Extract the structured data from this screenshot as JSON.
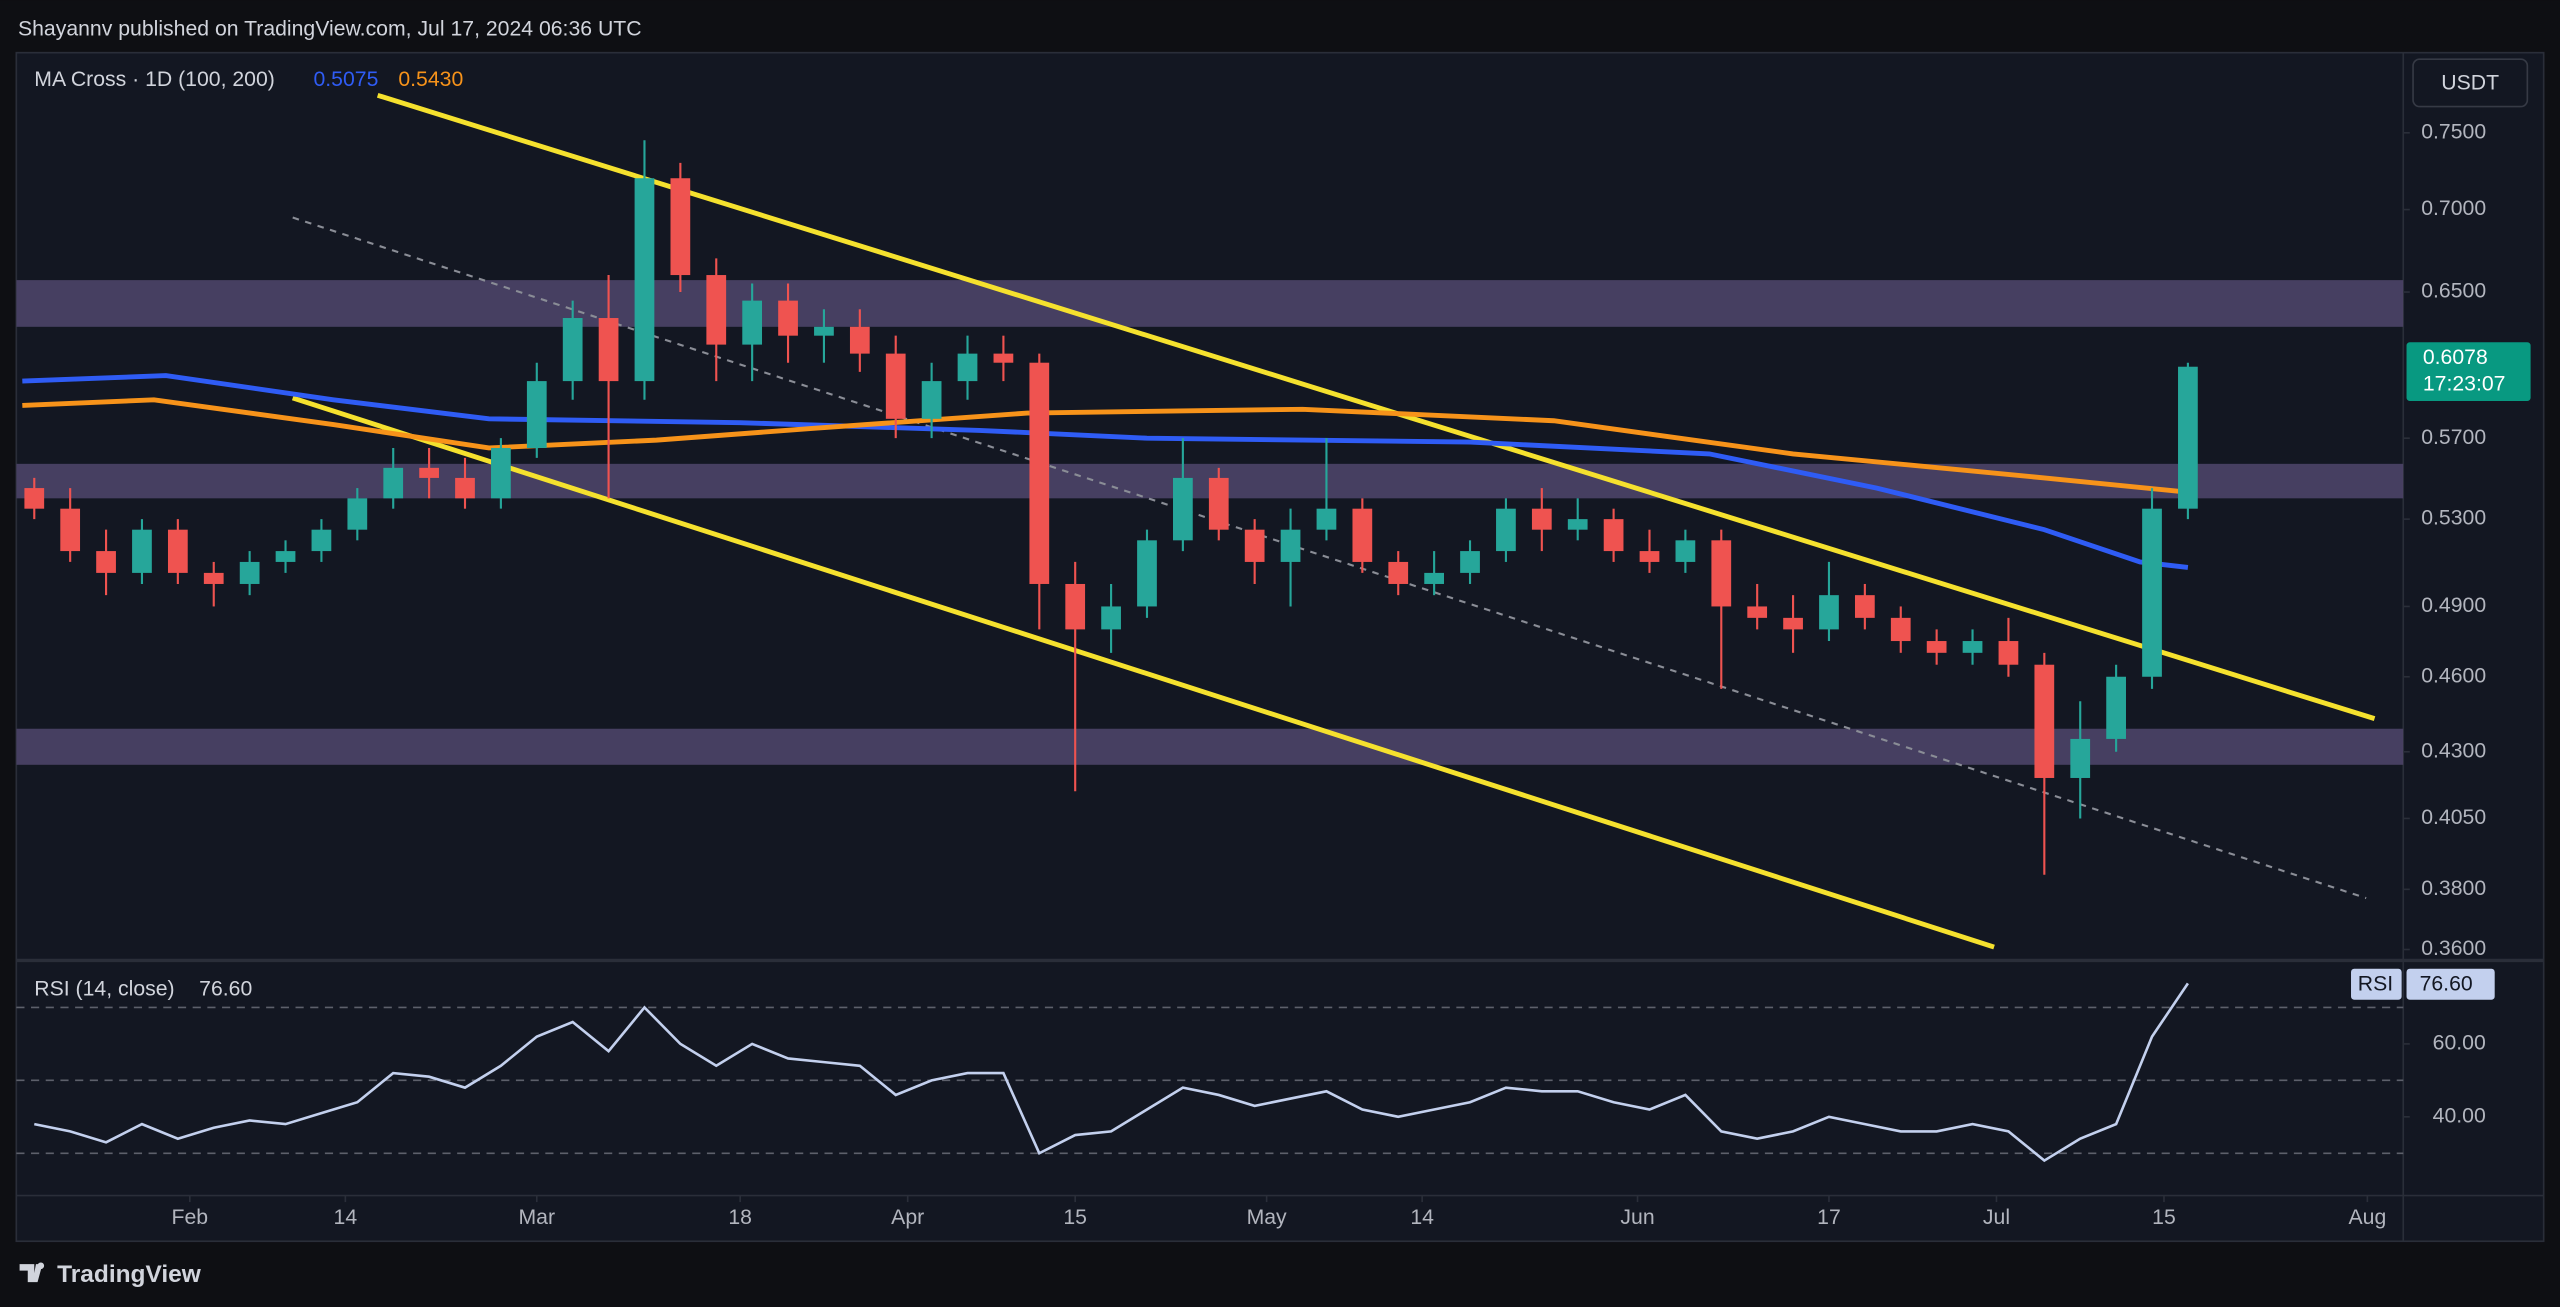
{
  "header": {
    "text": "Shayannv published on TradingView.com, Jul 17, 2024 06:36 UTC"
  },
  "footer": {
    "brand": "TradingView"
  },
  "chart_data": [
    {
      "type": "candlestick",
      "currency": "USDT",
      "countdown": "17:23:07",
      "log_scale": true,
      "up_color": "#26a69a",
      "down_color": "#ef5350",
      "x": [
        1,
        4,
        7,
        10,
        13,
        16,
        19,
        22,
        25,
        28,
        31,
        34,
        37,
        40,
        43,
        46,
        49,
        52,
        55,
        58,
        61,
        64,
        67,
        70,
        73,
        76,
        79,
        82,
        85,
        88,
        91,
        94,
        97,
        100,
        103,
        106,
        109,
        112,
        115,
        118,
        121,
        124,
        127,
        130,
        133,
        136,
        139,
        142,
        145,
        148,
        151,
        154,
        157,
        160,
        163,
        166,
        169,
        172,
        175,
        178,
        181
      ],
      "open": [
        0.545,
        0.535,
        0.515,
        0.505,
        0.525,
        0.505,
        0.5,
        0.51,
        0.515,
        0.525,
        0.54,
        0.555,
        0.55,
        0.54,
        0.565,
        0.6,
        0.635,
        0.6,
        0.72,
        0.66,
        0.62,
        0.645,
        0.625,
        0.63,
        0.615,
        0.58,
        0.6,
        0.615,
        0.61,
        0.5,
        0.48,
        0.49,
        0.52,
        0.55,
        0.525,
        0.51,
        0.525,
        0.535,
        0.51,
        0.5,
        0.505,
        0.515,
        0.535,
        0.525,
        0.53,
        0.515,
        0.51,
        0.52,
        0.49,
        0.485,
        0.48,
        0.495,
        0.485,
        0.475,
        0.47,
        0.475,
        0.465,
        0.42,
        0.435,
        0.46,
        0.535
      ],
      "high": [
        0.55,
        0.545,
        0.525,
        0.53,
        0.53,
        0.51,
        0.515,
        0.52,
        0.53,
        0.545,
        0.565,
        0.565,
        0.56,
        0.57,
        0.61,
        0.645,
        0.66,
        0.745,
        0.73,
        0.67,
        0.655,
        0.655,
        0.64,
        0.64,
        0.625,
        0.61,
        0.625,
        0.625,
        0.615,
        0.51,
        0.5,
        0.525,
        0.57,
        0.555,
        0.53,
        0.535,
        0.57,
        0.54,
        0.515,
        0.515,
        0.52,
        0.54,
        0.545,
        0.54,
        0.535,
        0.525,
        0.525,
        0.525,
        0.5,
        0.495,
        0.51,
        0.5,
        0.49,
        0.48,
        0.48,
        0.485,
        0.47,
        0.45,
        0.465,
        0.545,
        0.61
      ],
      "low": [
        0.53,
        0.51,
        0.495,
        0.5,
        0.5,
        0.49,
        0.495,
        0.505,
        0.51,
        0.52,
        0.535,
        0.54,
        0.535,
        0.535,
        0.56,
        0.59,
        0.54,
        0.59,
        0.65,
        0.6,
        0.6,
        0.61,
        0.61,
        0.605,
        0.57,
        0.57,
        0.59,
        0.6,
        0.48,
        0.415,
        0.47,
        0.485,
        0.515,
        0.52,
        0.5,
        0.49,
        0.52,
        0.505,
        0.495,
        0.495,
        0.5,
        0.51,
        0.515,
        0.52,
        0.51,
        0.505,
        0.505,
        0.455,
        0.48,
        0.47,
        0.475,
        0.48,
        0.47,
        0.465,
        0.465,
        0.46,
        0.385,
        0.405,
        0.43,
        0.455,
        0.53
      ],
      "close": [
        0.535,
        0.515,
        0.505,
        0.525,
        0.505,
        0.5,
        0.51,
        0.515,
        0.525,
        0.54,
        0.555,
        0.55,
        0.54,
        0.565,
        0.6,
        0.635,
        0.6,
        0.72,
        0.66,
        0.62,
        0.645,
        0.625,
        0.63,
        0.615,
        0.58,
        0.6,
        0.615,
        0.61,
        0.5,
        0.48,
        0.49,
        0.52,
        0.55,
        0.525,
        0.51,
        0.525,
        0.535,
        0.51,
        0.5,
        0.505,
        0.515,
        0.535,
        0.525,
        0.53,
        0.515,
        0.51,
        0.52,
        0.49,
        0.485,
        0.48,
        0.495,
        0.485,
        0.475,
        0.47,
        0.475,
        0.465,
        0.42,
        0.435,
        0.46,
        0.535,
        0.6078
      ],
      "xlim": [
        -0.5,
        199
      ],
      "xticks": [
        {
          "value": 14,
          "label": "Feb"
        },
        {
          "value": 27,
          "label": "14"
        },
        {
          "value": 43,
          "label": "Mar"
        },
        {
          "value": 60,
          "label": "18"
        },
        {
          "value": 74,
          "label": "Apr"
        },
        {
          "value": 88,
          "label": "15"
        },
        {
          "value": 104,
          "label": "May"
        },
        {
          "value": 117,
          "label": "14"
        },
        {
          "value": 135,
          "label": "Jun"
        },
        {
          "value": 151,
          "label": "17"
        },
        {
          "value": 165,
          "label": "Jul"
        },
        {
          "value": 179,
          "label": "15"
        },
        {
          "value": 196,
          "label": "Aug"
        }
      ],
      "ylim": [
        0.357,
        0.806
      ],
      "yticks": [
        {
          "value": 0.75,
          "label": "0.7500"
        },
        {
          "value": 0.7,
          "label": "0.7000"
        },
        {
          "value": 0.65,
          "label": "0.6500"
        },
        {
          "value": 0.57,
          "label": "0.5700"
        },
        {
          "value": 0.53,
          "label": "0.5300"
        },
        {
          "value": 0.49,
          "label": "0.4900"
        },
        {
          "value": 0.46,
          "label": "0.4600"
        },
        {
          "value": 0.43,
          "label": "0.4300"
        },
        {
          "value": 0.405,
          "label": "0.4050"
        },
        {
          "value": 0.38,
          "label": "0.3800"
        },
        {
          "value": 0.36,
          "label": "0.3600"
        }
      ],
      "zones": [
        [
          0.63,
          0.657
        ],
        [
          0.54,
          0.557
        ],
        [
          0.425,
          0.439
        ]
      ],
      "zone_color": "#4c4468",
      "ma": {
        "title": "MA Cross · 1D (100, 200)",
        "series": [
          {
            "color": "#2f5cf5",
            "label": "0.5075",
            "x": [
              0,
              12,
              26,
              39,
              60,
              80,
              94,
              121,
              141,
              155,
              169,
              177,
              181
            ],
            "values": [
              0.6,
              0.603,
              0.59,
              0.58,
              0.578,
              0.574,
              0.57,
              0.568,
              0.562,
              0.545,
              0.525,
              0.51,
              0.5075
            ]
          },
          {
            "color": "#f7931a",
            "label": "0.5430",
            "x": [
              0,
              11,
              26,
              39,
              53,
              66,
              84,
              107,
              128,
              148,
              169,
              181
            ],
            "values": [
              0.587,
              0.59,
              0.577,
              0.565,
              0.569,
              0.575,
              0.583,
              0.585,
              0.579,
              0.562,
              0.55,
              0.543
            ]
          }
        ]
      },
      "trendlines": [
        {
          "color": "#f5e12e",
          "dashed": false,
          "x": [
            29.7,
            196.6
          ],
          "values": [
            0.7757,
            0.443
          ]
        },
        {
          "color": "#f5e12e",
          "dashed": false,
          "x": [
            22.6,
            164.8
          ],
          "values": [
            0.591,
            0.3608
          ]
        },
        {
          "color": "#8a8d96",
          "dashed": true,
          "x": [
            22.6,
            195.9
          ],
          "values": [
            0.695,
            0.377
          ]
        }
      ]
    },
    {
      "type": "line",
      "title": "RSI (14, close)",
      "tag": "RSI",
      "current_label": "76.60",
      "color": "#c3d0ee",
      "x": [
        1,
        4,
        7,
        10,
        13,
        16,
        19,
        22,
        25,
        28,
        31,
        34,
        37,
        40,
        43,
        46,
        49,
        52,
        55,
        58,
        61,
        64,
        67,
        70,
        73,
        76,
        79,
        82,
        85,
        88,
        91,
        94,
        97,
        100,
        103,
        106,
        109,
        112,
        115,
        118,
        121,
        124,
        127,
        130,
        133,
        136,
        139,
        142,
        145,
        148,
        151,
        154,
        157,
        160,
        163,
        166,
        169,
        172,
        175,
        178,
        181
      ],
      "values": [
        38,
        36,
        33,
        38,
        34,
        37,
        39,
        38,
        41,
        44,
        52,
        51,
        48,
        54,
        62,
        66,
        58,
        70,
        60,
        54,
        60,
        56,
        55,
        54,
        46,
        50,
        52,
        52,
        30,
        35,
        36,
        42,
        48,
        46,
        43,
        45,
        47,
        42,
        40,
        42,
        44,
        48,
        47,
        47,
        44,
        42,
        46,
        36,
        34,
        36,
        40,
        38,
        36,
        36,
        38,
        36,
        28,
        34,
        38,
        62,
        76.6
      ],
      "ylim": [
        19.3,
        82
      ],
      "yticks": [
        {
          "value": 40,
          "label": "40.00"
        },
        {
          "value": 60,
          "label": "60.00"
        }
      ],
      "bands": [
        30,
        50,
        70
      ]
    }
  ]
}
